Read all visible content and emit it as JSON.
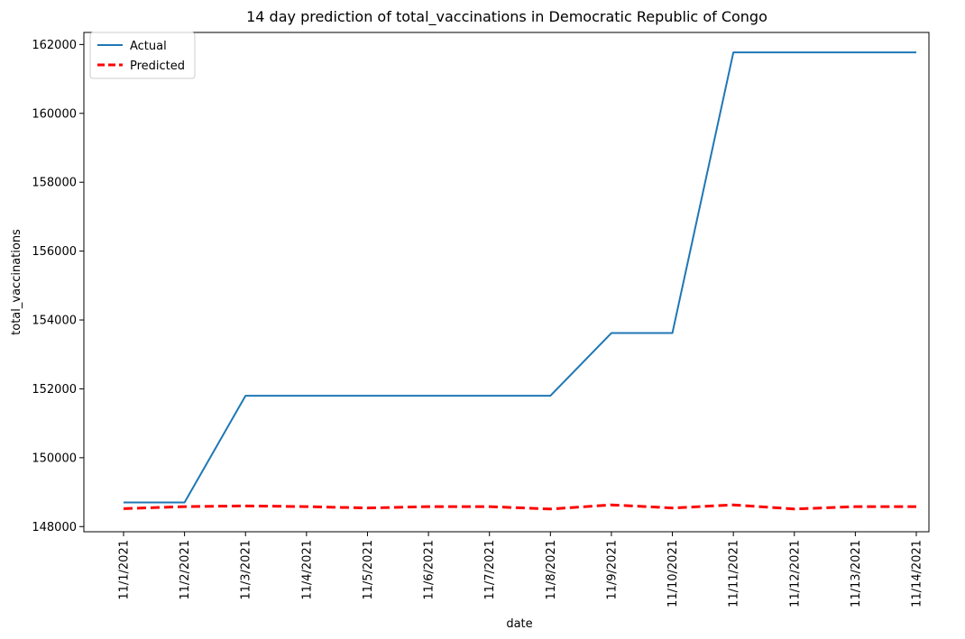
{
  "chart_data": {
    "type": "line",
    "title": "14 day prediction of total_vaccinations in Democratic Republic of Congo",
    "xlabel": "date",
    "ylabel": "total_vaccinations",
    "categories": [
      "11/1/2021",
      "11/2/2021",
      "11/3/2021",
      "11/4/2021",
      "11/5/2021",
      "11/6/2021",
      "11/7/2021",
      "11/8/2021",
      "11/9/2021",
      "11/10/2021",
      "11/11/2021",
      "11/12/2021",
      "11/13/2021",
      "11/14/2021"
    ],
    "yticks": [
      148000,
      150000,
      152000,
      154000,
      156000,
      158000,
      160000,
      162000
    ],
    "ylim": [
      147850,
      162350
    ],
    "grid": false,
    "legend_position": "upper-left",
    "series": [
      {
        "name": "Actual",
        "color": "#1f77b4",
        "style": "solid",
        "values": [
          148700,
          148700,
          151800,
          151800,
          151800,
          151800,
          151800,
          151800,
          153620,
          153620,
          161770,
          161770,
          161770,
          161770
        ]
      },
      {
        "name": "Predicted",
        "color": "#ff0000",
        "style": "dashed",
        "values": [
          148520,
          148580,
          148600,
          148580,
          148540,
          148580,
          148580,
          148510,
          148630,
          148540,
          148630,
          148510,
          148580,
          148580
        ]
      }
    ]
  }
}
